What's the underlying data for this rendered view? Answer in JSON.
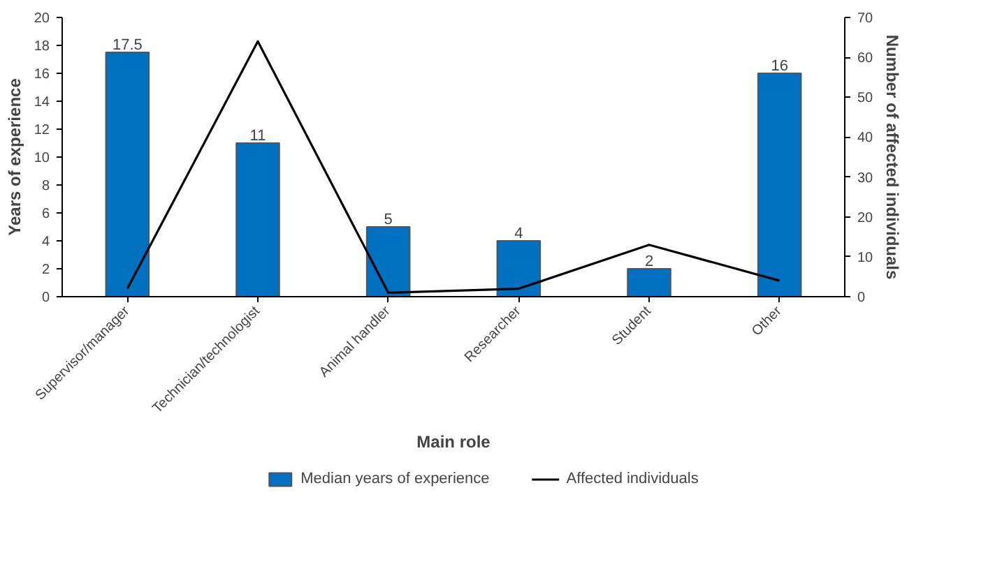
{
  "chart_data": {
    "type": "bar",
    "categories": [
      "Supervisor/manager",
      "Technician/technologist",
      "Animal handler",
      "Researcher",
      "Student",
      "Other"
    ],
    "xlabel": "Main role",
    "ylabel": "Years of experience",
    "y2label": "Number of affected individuals",
    "series": [
      {
        "name": "Median years of experience",
        "color": "#0070c0",
        "values": [
          17.5,
          11,
          5,
          4,
          2,
          16
        ],
        "value_labels": [
          "17.5",
          "11",
          "5",
          "4",
          "2",
          "16"
        ]
      },
      {
        "name": "Affected individuals",
        "color": "#000000",
        "values": [
          2,
          64,
          1,
          2,
          13,
          4
        ],
        "type": "line",
        "axis": "y2"
      }
    ],
    "ylim": [
      0,
      20
    ],
    "yticks": [
      0,
      2,
      4,
      6,
      8,
      10,
      12,
      14,
      16,
      18,
      20
    ],
    "y2lim": [
      0,
      70
    ],
    "y2ticks": [
      0,
      10,
      20,
      30,
      40,
      50,
      60,
      70
    ],
    "grid": false,
    "legend": "bottom",
    "marker": "none",
    "line_style": "solid"
  }
}
